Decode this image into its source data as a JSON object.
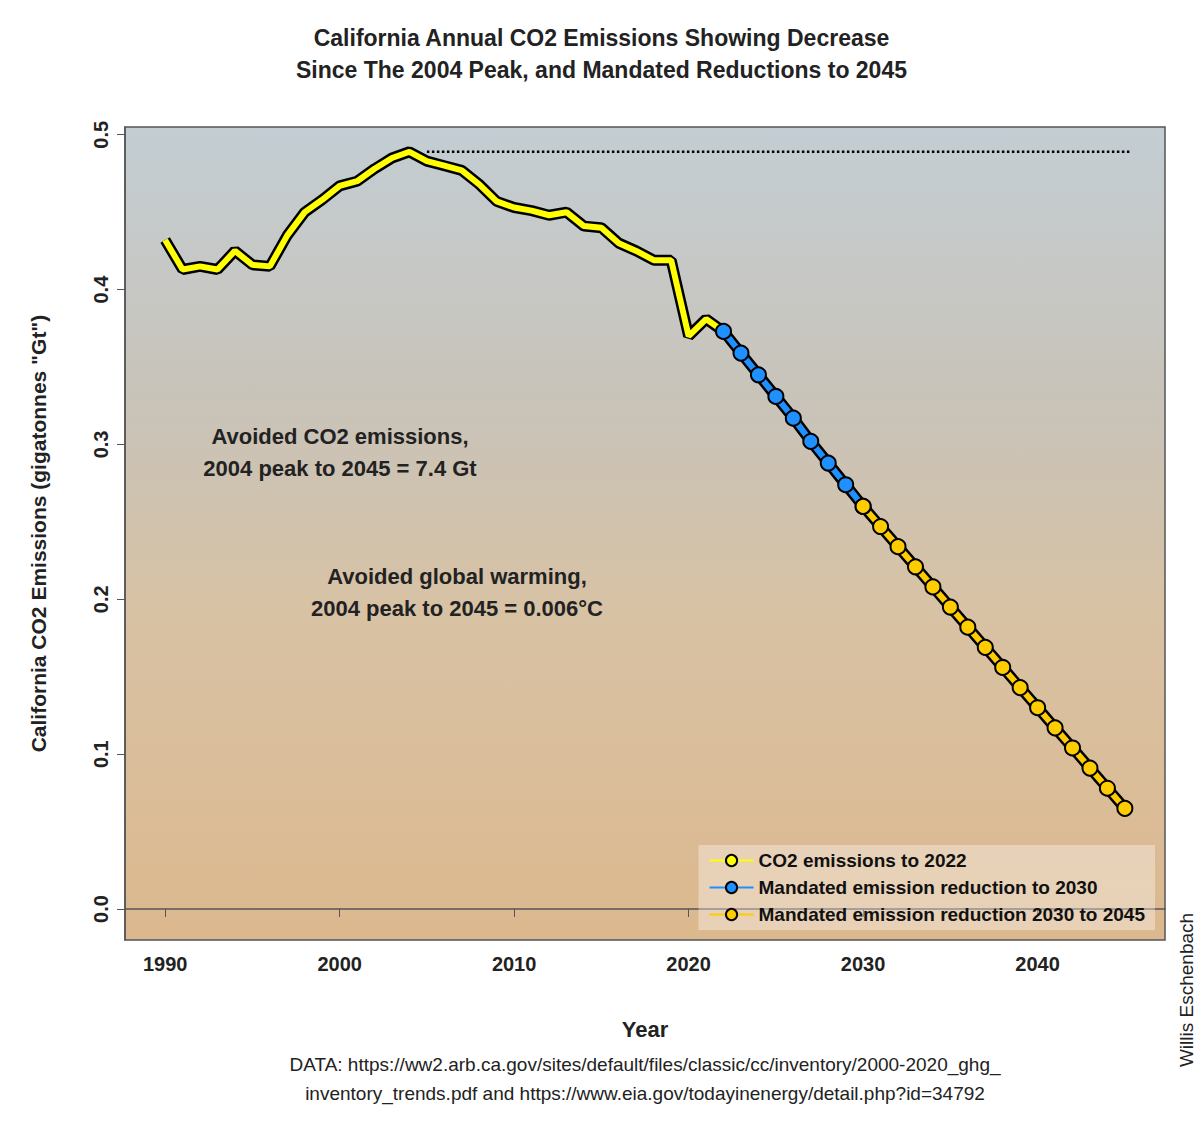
{
  "chart_data": {
    "type": "line",
    "title": "California Annual CO2 Emissions Showing Decrease\nSince The 2004 Peak, and Mandated Reductions to 2045",
    "x_label": "Year",
    "y_label": "California CO2 Emissions (gigatonnes \"Gt\")",
    "annotations": [
      "Avoided CO2 emissions,\n2004 peak to 2045 = 7.4 Gt",
      "Avoided global warming,\n2004 peak to 2045 = 0.006°C"
    ],
    "source": "DATA: https://ww2.arb.ca.gov/sites/default/files/classic/cc/inventory/2000-2020_ghg_\ninventory_trends.pdf and https://www.eia.gov/todayinenergy/detail.php?id=34792",
    "credit": "Willis Eschenbach",
    "xlim": [
      1987.7,
      2047.3
    ],
    "xticks": [
      1990,
      2000,
      2010,
      2020,
      2030,
      2040
    ],
    "ylim": [
      -0.02,
      0.505
    ],
    "yticks": [
      {
        "value": 0,
        "label": "0.0"
      },
      0.1,
      0.2,
      0.3,
      0.4,
      0.5
    ],
    "grid": false,
    "legend": "lower right",
    "series": [
      {
        "name": "CO2 emissions to 2022",
        "color": "#ffff00",
        "marker": "none",
        "x": [
          1990,
          1991,
          1992,
          1993,
          1994,
          1995,
          1996,
          1997,
          1998,
          1999,
          2000,
          2001,
          2002,
          2003,
          2004,
          2005,
          2006,
          2007,
          2008,
          2009,
          2010,
          2011,
          2012,
          2013,
          2014,
          2015,
          2016,
          2017,
          2018,
          2019,
          2020,
          2021,
          2022
        ],
        "values": [
          0.432,
          0.413,
          0.415,
          0.413,
          0.425,
          0.416,
          0.415,
          0.435,
          0.45,
          0.458,
          0.467,
          0.47,
          0.478,
          0.485,
          0.489,
          0.483,
          0.48,
          0.477,
          0.468,
          0.457,
          0.453,
          0.451,
          0.448,
          0.45,
          0.441,
          0.44,
          0.43,
          0.425,
          0.419,
          0.419,
          0.37,
          0.381,
          0.373
        ]
      },
      {
        "name": "Mandated emission reduction to 2030",
        "color": "#1e90ff",
        "marker": "circle",
        "x": [
          2022,
          2023,
          2024,
          2025,
          2026,
          2027,
          2028,
          2029,
          2030
        ],
        "values": [
          0.373,
          0.359,
          0.345,
          0.331,
          0.317,
          0.302,
          0.288,
          0.274,
          0.26
        ]
      },
      {
        "name": "Mandated emission reduction 2030 to 2045",
        "color": "#ffcc00",
        "marker": "circle",
        "x": [
          2030,
          2031,
          2032,
          2033,
          2034,
          2035,
          2036,
          2037,
          2038,
          2039,
          2040,
          2041,
          2042,
          2043,
          2044,
          2045
        ],
        "values": [
          0.26,
          0.247,
          0.234,
          0.221,
          0.208,
          0.195,
          0.182,
          0.169,
          0.156,
          0.143,
          0.13,
          0.117,
          0.104,
          0.091,
          0.078,
          0.065
        ]
      }
    ],
    "reference_line": {
      "x": [
        2005,
        2045.3
      ],
      "y": 0.489,
      "color": "#000000",
      "line_style": "dotted"
    }
  }
}
